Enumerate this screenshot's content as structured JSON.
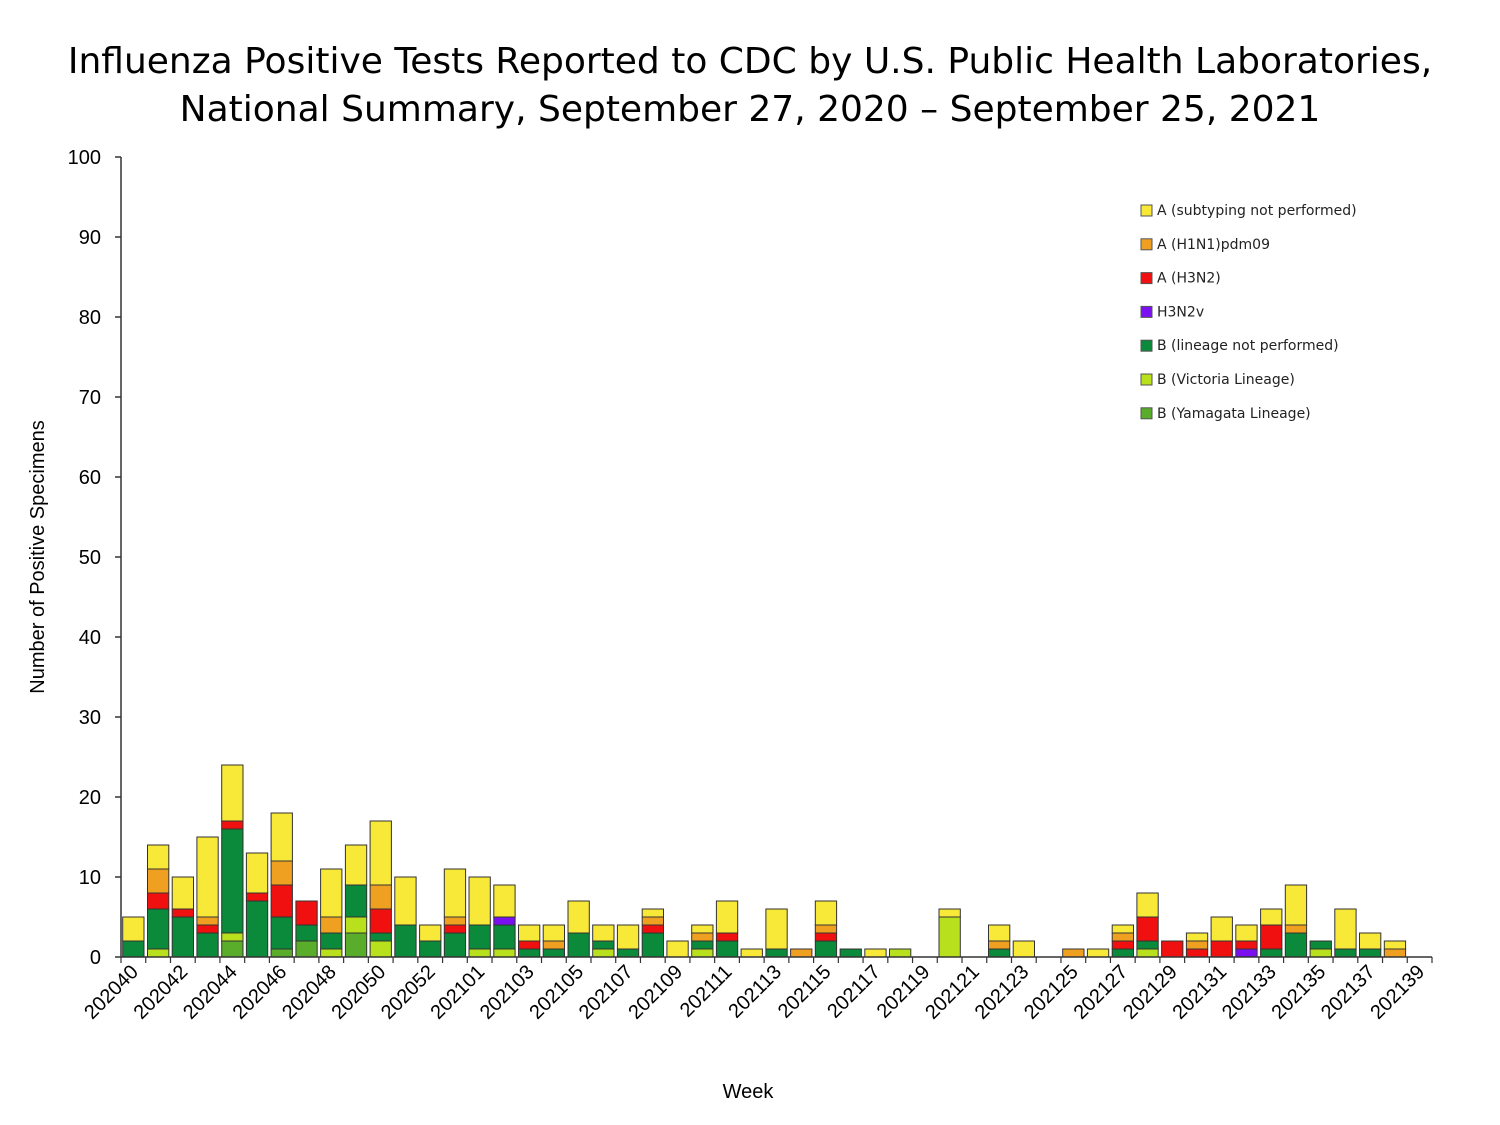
{
  "chart_data": {
    "type": "bar",
    "stacked": true,
    "title": "Influenza Positive Tests Reported to CDC by U.S. Public Health Laboratories,",
    "subtitle": "National Summary, September 27, 2020 – September 25, 2021",
    "xlabel": "Week",
    "ylabel": "Number of Positive Specimens",
    "ylim": [
      0,
      100
    ],
    "yticks": [
      0,
      10,
      20,
      30,
      40,
      50,
      60,
      70,
      80,
      90,
      100
    ],
    "legend_position": "top-right",
    "categories": [
      "202040",
      "202041",
      "202042",
      "202043",
      "202044",
      "202045",
      "202046",
      "202047",
      "202048",
      "202049",
      "202050",
      "202051",
      "202052",
      "202053",
      "202101",
      "202102",
      "202103",
      "202104",
      "202105",
      "202106",
      "202107",
      "202108",
      "202109",
      "202110",
      "202111",
      "202112",
      "202113",
      "202114",
      "202115",
      "202116",
      "202117",
      "202118",
      "202119",
      "202120",
      "202121",
      "202122",
      "202123",
      "202124",
      "202125",
      "202126",
      "202127",
      "202128",
      "202129",
      "202130",
      "202131",
      "202132",
      "202133",
      "202134",
      "202135",
      "202136",
      "202137",
      "202138",
      "202139"
    ],
    "tick_labels": [
      "202040",
      "202042",
      "202044",
      "202046",
      "202048",
      "202050",
      "202052",
      "202101",
      "202103",
      "202105",
      "202107",
      "202109",
      "202111",
      "202113",
      "202115",
      "202117",
      "202119",
      "202121",
      "202123",
      "202125",
      "202127",
      "202129",
      "202131",
      "202133",
      "202135",
      "202137",
      "202139"
    ],
    "series": [
      {
        "name": "B (Yamagata Lineage)",
        "color": "#5aad2a",
        "values": [
          0,
          0,
          0,
          0,
          2,
          0,
          1,
          2,
          0,
          3,
          0,
          0,
          0,
          0,
          0,
          0,
          0,
          0,
          0,
          0,
          0,
          0,
          0,
          0,
          0,
          0,
          0,
          0,
          0,
          0,
          0,
          0,
          0,
          0,
          0,
          0,
          0,
          0,
          0,
          0,
          0,
          0,
          0,
          0,
          0,
          0,
          0,
          0,
          0,
          0,
          0,
          0,
          0
        ]
      },
      {
        "name": "B (Victoria Lineage)",
        "color": "#b8e01c",
        "values": [
          0,
          1,
          0,
          0,
          1,
          0,
          0,
          0,
          1,
          2,
          2,
          0,
          0,
          0,
          1,
          1,
          0,
          0,
          0,
          1,
          0,
          0,
          0,
          1,
          0,
          0,
          0,
          0,
          0,
          0,
          0,
          1,
          0,
          5,
          0,
          0,
          0,
          0,
          0,
          0,
          0,
          1,
          0,
          0,
          0,
          0,
          0,
          0,
          1,
          0,
          0,
          0,
          0
        ]
      },
      {
        "name": "B (lineage not performed)",
        "color": "#0a8a3a",
        "values": [
          2,
          5,
          5,
          3,
          13,
          7,
          4,
          2,
          2,
          4,
          1,
          4,
          2,
          3,
          3,
          3,
          1,
          1,
          3,
          1,
          1,
          3,
          0,
          1,
          2,
          0,
          1,
          0,
          2,
          1,
          0,
          0,
          0,
          0,
          0,
          1,
          0,
          0,
          0,
          0,
          1,
          1,
          0,
          0,
          0,
          0,
          1,
          3,
          1,
          1,
          1,
          0,
          0
        ]
      },
      {
        "name": "H3N2v",
        "color": "#7a10f0",
        "values": [
          0,
          0,
          0,
          0,
          0,
          0,
          0,
          0,
          0,
          0,
          0,
          0,
          0,
          0,
          0,
          1,
          0,
          0,
          0,
          0,
          0,
          0,
          0,
          0,
          0,
          0,
          0,
          0,
          0,
          0,
          0,
          0,
          0,
          0,
          0,
          0,
          0,
          0,
          0,
          0,
          0,
          0,
          0,
          0,
          0,
          1,
          0,
          0,
          0,
          0,
          0,
          0,
          0
        ]
      },
      {
        "name": "A (H3N2)",
        "color": "#f01010",
        "values": [
          0,
          2,
          1,
          1,
          1,
          1,
          4,
          3,
          0,
          0,
          3,
          0,
          0,
          1,
          0,
          0,
          1,
          0,
          0,
          0,
          0,
          1,
          0,
          0,
          1,
          0,
          0,
          0,
          1,
          0,
          0,
          0,
          0,
          0,
          0,
          0,
          0,
          0,
          0,
          0,
          1,
          3,
          2,
          1,
          2,
          1,
          3,
          0,
          0,
          0,
          0,
          0,
          0
        ]
      },
      {
        "name": "A (H1N1)pdm09",
        "color": "#f0a020",
        "values": [
          0,
          3,
          0,
          1,
          0,
          0,
          3,
          0,
          2,
          0,
          3,
          0,
          0,
          1,
          0,
          0,
          0,
          1,
          0,
          0,
          0,
          1,
          0,
          1,
          0,
          0,
          0,
          1,
          1,
          0,
          0,
          0,
          0,
          0,
          0,
          1,
          0,
          0,
          1,
          0,
          1,
          0,
          0,
          1,
          0,
          0,
          0,
          1,
          0,
          0,
          0,
          1,
          0
        ]
      },
      {
        "name": "A (subtyping not performed)",
        "color": "#f8e838",
        "values": [
          3,
          3,
          4,
          10,
          7,
          5,
          6,
          0,
          6,
          5,
          8,
          6,
          2,
          6,
          6,
          4,
          2,
          2,
          4,
          2,
          3,
          1,
          2,
          1,
          4,
          1,
          5,
          0,
          3,
          0,
          1,
          0,
          0,
          1,
          0,
          2,
          2,
          0,
          0,
          1,
          1,
          3,
          0,
          1,
          3,
          2,
          2,
          5,
          0,
          5,
          2,
          1,
          0
        ]
      }
    ],
    "legend_order": [
      "A (subtyping not performed)",
      "A (H1N1)pdm09",
      "A (H3N2)",
      "H3N2v",
      "B (lineage not performed)",
      "B (Victoria Lineage)",
      "B (Yamagata Lineage)"
    ]
  }
}
